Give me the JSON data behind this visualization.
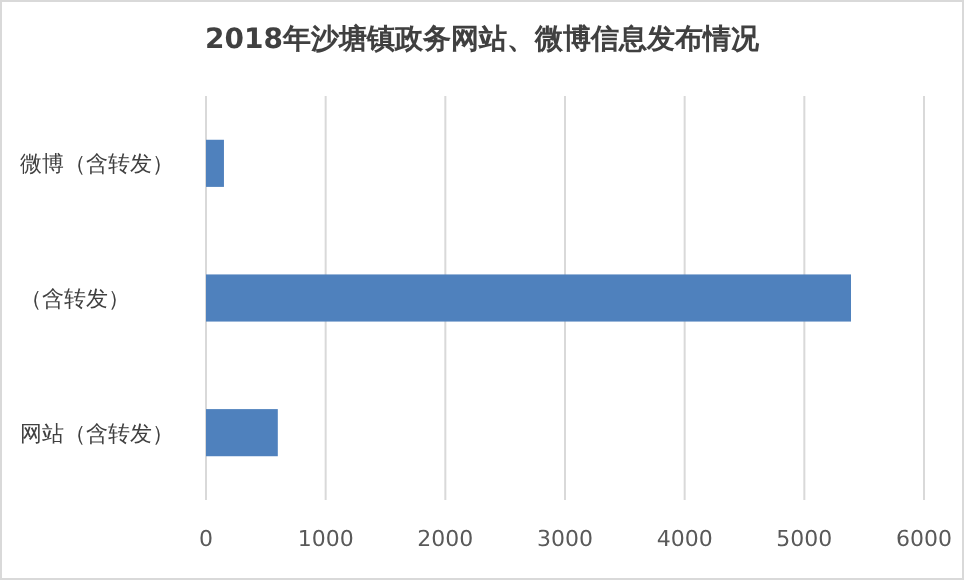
{
  "chart_data": {
    "type": "bar",
    "orientation": "horizontal",
    "title": "2018年沙塘镇政务网站、微博信息发布情况",
    "categories": [
      "微博（含转发）",
      "（含转发）",
      "网站（含转发）"
    ],
    "values": [
      150,
      5390,
      600
    ],
    "color": "#4f81bd",
    "xlim": [
      0,
      6000
    ],
    "xticks": [
      0,
      1000,
      2000,
      3000,
      4000,
      5000,
      6000
    ],
    "grid": "x"
  }
}
